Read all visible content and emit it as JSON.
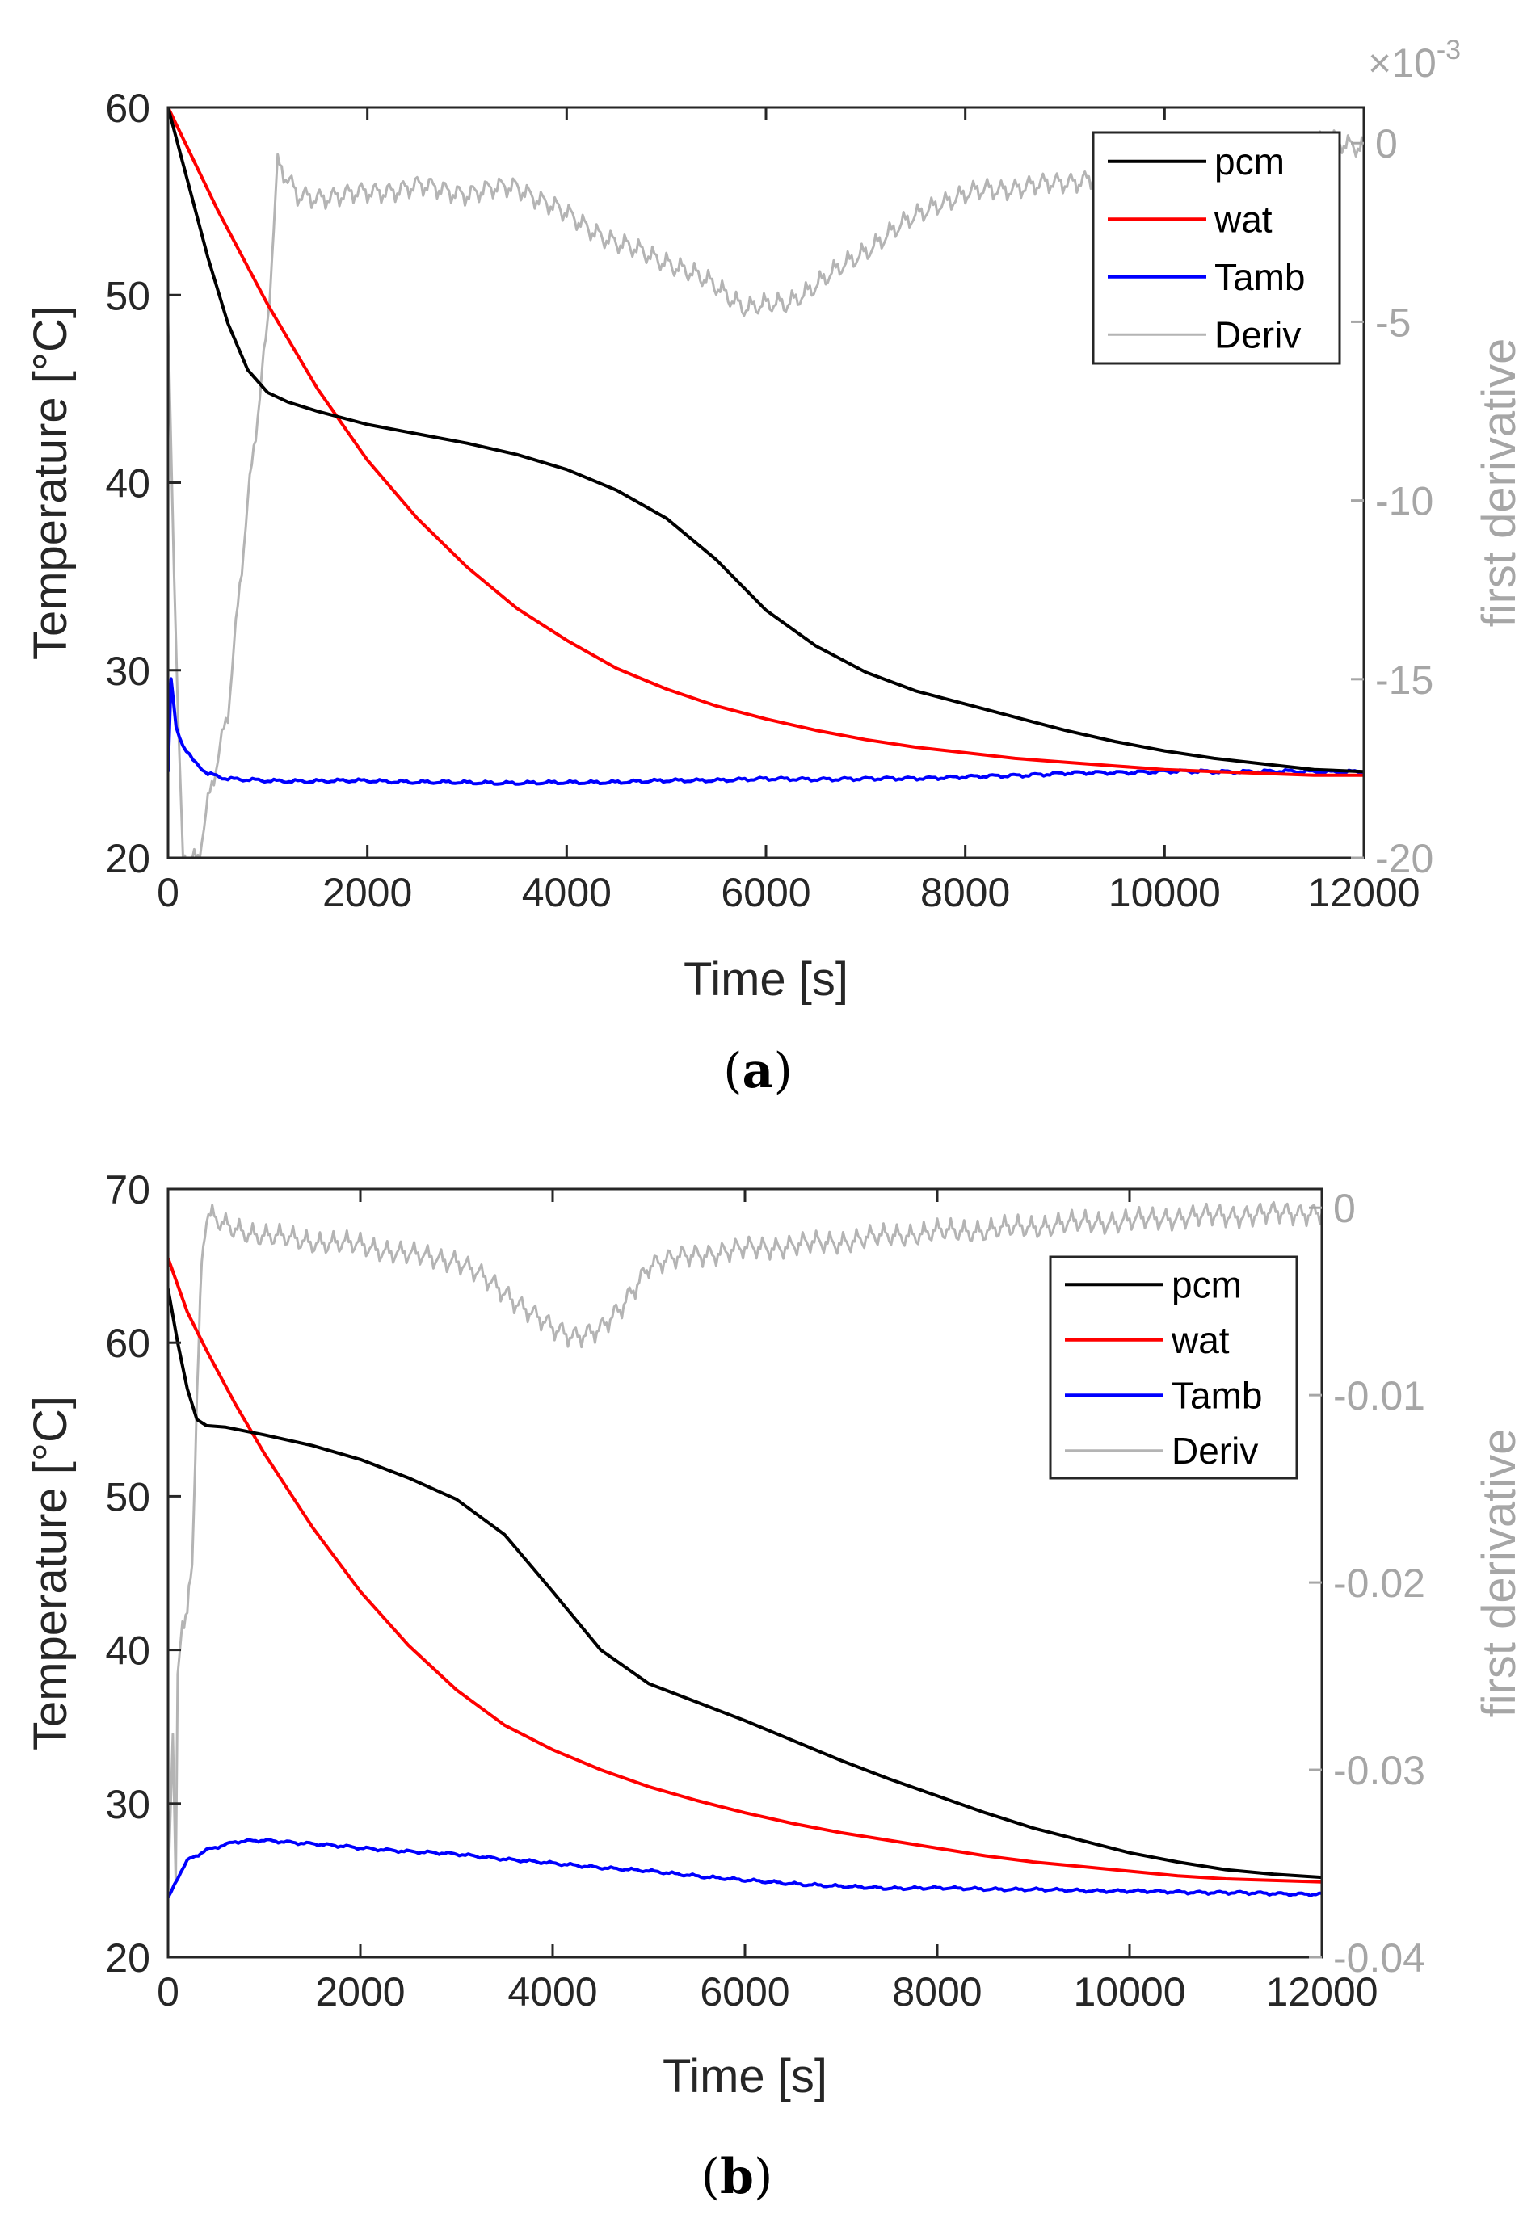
{
  "chart_data": [
    {
      "type": "line",
      "caption_letter": "a",
      "xlabel": "Time [s]",
      "ylabel": "Temperature [°C]",
      "ylabel_right": "first derivative",
      "right_axis_exponent": {
        "base": "×10",
        "power": "-3"
      },
      "xlim": [
        0,
        12000
      ],
      "ylim": [
        20,
        60
      ],
      "ylim_right": [
        -20,
        1
      ],
      "x_ticks": [
        0,
        2000,
        4000,
        6000,
        8000,
        10000,
        12000
      ],
      "x_tick_labels": [
        "0",
        "2000",
        "4000",
        "6000",
        "8000",
        "10000",
        "12000"
      ],
      "y_ticks": [
        20,
        30,
        40,
        50,
        60
      ],
      "y_tick_labels": [
        "20",
        "30",
        "40",
        "50",
        "60"
      ],
      "y_ticks_right": [
        -20,
        -15,
        -10,
        -5,
        0
      ],
      "y_tick_labels_right": [
        "-20",
        "-15",
        "-10",
        "-5",
        "0"
      ],
      "legend": [
        "pcm",
        "wat",
        "Tamb",
        "Deriv"
      ],
      "legend_position": "top-right",
      "colors": {
        "pcm": "#000000",
        "wat": "#ff0000",
        "Tamb": "#0000ff",
        "Deriv": "#b4b4b4"
      },
      "series": [
        {
          "name": "pcm",
          "axis": "left",
          "x": [
            0,
            200,
            400,
            600,
            800,
            1000,
            1200,
            1500,
            2000,
            2500,
            3000,
            3500,
            4000,
            4500,
            5000,
            5500,
            6000,
            6500,
            7000,
            7500,
            8000,
            8500,
            9000,
            9500,
            10000,
            10500,
            11000,
            11500,
            12000
          ],
          "values": [
            60,
            56,
            52,
            48.5,
            46,
            44.8,
            44.3,
            43.8,
            43.1,
            42.6,
            42.1,
            41.5,
            40.7,
            39.6,
            38.1,
            35.9,
            33.2,
            31.3,
            29.9,
            28.9,
            28.2,
            27.5,
            26.8,
            26.2,
            25.7,
            25.3,
            25.0,
            24.7,
            24.6
          ]
        },
        {
          "name": "wat",
          "axis": "left",
          "x": [
            0,
            500,
            1000,
            1500,
            2000,
            2500,
            3000,
            3500,
            4000,
            4500,
            5000,
            5500,
            6000,
            6500,
            7000,
            7500,
            8000,
            8500,
            9000,
            9500,
            10000,
            10500,
            11000,
            11500,
            12000
          ],
          "values": [
            60,
            54.5,
            49.5,
            45,
            41.2,
            38.1,
            35.5,
            33.3,
            31.6,
            30.1,
            29.0,
            28.1,
            27.4,
            26.8,
            26.3,
            25.9,
            25.6,
            25.3,
            25.1,
            24.9,
            24.7,
            24.6,
            24.5,
            24.4,
            24.4
          ]
        },
        {
          "name": "Tamb",
          "axis": "left",
          "x": [
            0,
            30,
            80,
            150,
            250,
            400,
            600,
            1000,
            2000,
            3000,
            4000,
            5000,
            6000,
            7000,
            8000,
            9000,
            10000,
            11000,
            12000
          ],
          "values": [
            24.5,
            29.5,
            27,
            26,
            25.2,
            24.5,
            24.2,
            24.1,
            24.1,
            24.0,
            24.0,
            24.1,
            24.2,
            24.2,
            24.3,
            24.5,
            24.6,
            24.6,
            24.6
          ]
        },
        {
          "name": "Deriv",
          "axis": "right",
          "x": [
            0,
            60,
            100,
            150,
            300,
            400,
            600,
            800,
            1000,
            1100,
            1300,
            1500,
            2000,
            2500,
            3000,
            3500,
            4000,
            4500,
            5000,
            5500,
            5800,
            6200,
            6700,
            7200,
            7700,
            8200,
            8700,
            9200,
            9700,
            10200,
            10700,
            11200,
            11700,
            12000
          ],
          "values": [
            -5,
            -12,
            -16,
            -20,
            -20,
            -18.5,
            -16,
            -10,
            -5,
            -0.6,
            -1.5,
            -1.5,
            -1.4,
            -1.2,
            -1.4,
            -1.2,
            -2.0,
            -2.8,
            -3.3,
            -4.0,
            -4.6,
            -4.5,
            -3.6,
            -2.6,
            -1.7,
            -1.3,
            -1.2,
            -1.0,
            -0.7,
            -0.6,
            -0.4,
            -0.2,
            0.1,
            -0.1
          ]
        }
      ]
    },
    {
      "type": "line",
      "caption_letter": "b",
      "xlabel": "Time [s]",
      "ylabel": "Temperature [°C]",
      "ylabel_right": "first derivative",
      "xlim": [
        0,
        12000
      ],
      "ylim": [
        20,
        70
      ],
      "ylim_right": [
        -0.04,
        0.001
      ],
      "x_ticks": [
        0,
        2000,
        4000,
        6000,
        8000,
        10000,
        12000
      ],
      "x_tick_labels": [
        "0",
        "2000",
        "4000",
        "6000",
        "8000",
        "10000",
        "12000"
      ],
      "y_ticks": [
        20,
        30,
        40,
        50,
        60,
        70
      ],
      "y_tick_labels": [
        "20",
        "30",
        "40",
        "50",
        "60",
        "70"
      ],
      "y_ticks_right": [
        -0.04,
        -0.03,
        -0.02,
        -0.01,
        0
      ],
      "y_tick_labels_right": [
        "-0.04",
        "-0.03",
        "-0.02",
        "-0.01",
        "0"
      ],
      "legend": [
        "pcm",
        "wat",
        "Tamb",
        "Deriv"
      ],
      "legend_position": "top-right",
      "colors": {
        "pcm": "#000000",
        "wat": "#ff0000",
        "Tamb": "#0000ff",
        "Deriv": "#b4b4b4"
      },
      "series": [
        {
          "name": "pcm",
          "axis": "left",
          "x": [
            0,
            100,
            200,
            300,
            400,
            600,
            1000,
            1500,
            2000,
            2500,
            3000,
            3500,
            4000,
            4500,
            5000,
            5500,
            6000,
            6500,
            7000,
            7500,
            8000,
            8500,
            9000,
            9500,
            10000,
            10500,
            11000,
            11500,
            12000
          ],
          "values": [
            63.5,
            60,
            57,
            55,
            54.6,
            54.5,
            54,
            53.3,
            52.4,
            51.2,
            49.8,
            47.5,
            43.8,
            40,
            37.8,
            36.6,
            35.4,
            34.1,
            32.8,
            31.6,
            30.5,
            29.4,
            28.4,
            27.6,
            26.8,
            26.2,
            25.7,
            25.4,
            25.2
          ]
        },
        {
          "name": "wat",
          "axis": "left",
          "x": [
            0,
            200,
            400,
            700,
            1000,
            1500,
            2000,
            2500,
            3000,
            3500,
            4000,
            4500,
            5000,
            5500,
            6000,
            6500,
            7000,
            7500,
            8000,
            8500,
            9000,
            9500,
            10000,
            10500,
            11000,
            11500,
            12000
          ],
          "values": [
            65.5,
            62,
            59.5,
            56,
            52.8,
            48,
            43.8,
            40.3,
            37.4,
            35.1,
            33.5,
            32.2,
            31.1,
            30.2,
            29.4,
            28.7,
            28.1,
            27.6,
            27.1,
            26.6,
            26.2,
            25.9,
            25.6,
            25.3,
            25.1,
            25.0,
            24.9
          ]
        },
        {
          "name": "Tamb",
          "axis": "left",
          "x": [
            0,
            100,
            200,
            400,
            700,
            1000,
            1500,
            2000,
            3000,
            4000,
            5000,
            6000,
            7000,
            7500,
            8000,
            9000,
            10000,
            11000,
            12000
          ],
          "values": [
            23.8,
            25.2,
            26.3,
            27.0,
            27.5,
            27.6,
            27.4,
            27.1,
            26.7,
            26.1,
            25.6,
            25.0,
            24.6,
            24.5,
            24.5,
            24.4,
            24.3,
            24.2,
            24.1
          ]
        },
        {
          "name": "Deriv",
          "axis": "right",
          "x": [
            0,
            50,
            80,
            100,
            150,
            200,
            250,
            300,
            350,
            400,
            600,
            1000,
            1500,
            2000,
            2500,
            3000,
            3500,
            4000,
            4200,
            4500,
            4700,
            5000,
            5500,
            6000,
            6500,
            7000,
            7500,
            8000,
            8500,
            9000,
            9500,
            10000,
            10500,
            11000,
            11500,
            12000
          ],
          "values": [
            -0.0365,
            -0.028,
            -0.036,
            -0.025,
            -0.022,
            -0.0215,
            -0.019,
            -0.01,
            -0.003,
            -0.0004,
            -0.001,
            -0.0015,
            -0.0018,
            -0.002,
            -0.0025,
            -0.0028,
            -0.0045,
            -0.0065,
            -0.0068,
            -0.0065,
            -0.0055,
            -0.003,
            -0.0025,
            -0.0022,
            -0.002,
            -0.0018,
            -0.0015,
            -0.0013,
            -0.0012,
            -0.001,
            -0.0008,
            -0.0007,
            -0.0005,
            -0.0004,
            -0.0003,
            -0.0002
          ]
        }
      ]
    }
  ]
}
